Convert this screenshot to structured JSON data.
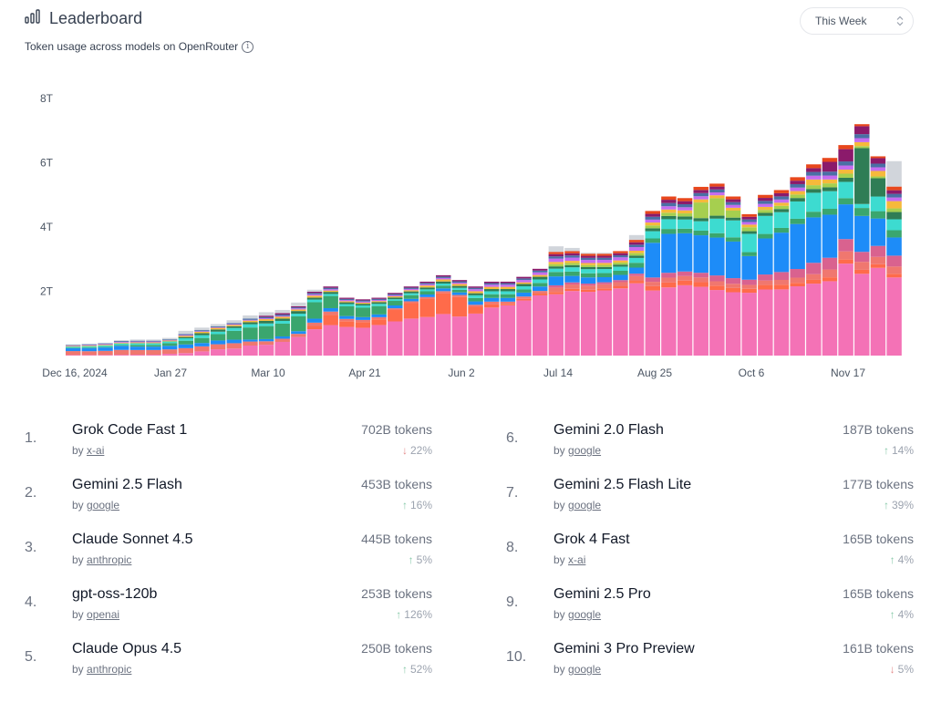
{
  "header": {
    "title": "Leaderboard",
    "subtitle": "Token usage across models on OpenRouter",
    "period": "This Week"
  },
  "colors": {
    "up": "#86c9a8",
    "down": "#e48b8b",
    "text": "#111827",
    "muted": "#6b7280"
  },
  "chart_data": {
    "type": "bar",
    "stacked": true,
    "x_ticks": [
      "Dec 16, 2024",
      "Jan 27",
      "Mar 10",
      "Apr 21",
      "Jun 2",
      "Jul 14",
      "Aug 25",
      "Oct 6",
      "Nov 17"
    ],
    "y_ticks": [
      "2T",
      "4T",
      "6T",
      "8T"
    ],
    "ylim": [
      0,
      8
    ],
    "y_unit": "T tokens",
    "weeks": 52,
    "totals": [
      0.35,
      0.37,
      0.4,
      0.48,
      0.5,
      0.5,
      0.55,
      0.77,
      0.87,
      0.98,
      1.1,
      1.25,
      1.35,
      1.42,
      1.65,
      2.05,
      2.15,
      1.8,
      1.75,
      1.8,
      1.95,
      2.15,
      2.3,
      2.5,
      2.35,
      2.15,
      2.3,
      2.3,
      2.45,
      2.7,
      3.4,
      3.35,
      3.2,
      3.2,
      3.25,
      3.75,
      4.5,
      4.95,
      4.9,
      5.25,
      5.35,
      4.95,
      4.4,
      5.0,
      5.15,
      5.55,
      5.95,
      6.15,
      6.55,
      7.2,
      6.2,
      6.05
    ],
    "stacks": [
      {
        "name": "pink",
        "color": "#f472b6",
        "shares": [
          0.05,
          0.05,
          0.05,
          0.05,
          0.05,
          0.05,
          0.1,
          0.1,
          0.15,
          0.2,
          0.2,
          0.25,
          0.25,
          0.3,
          0.35,
          0.4,
          0.45,
          0.5,
          0.5,
          0.55,
          0.6,
          0.6,
          0.6,
          0.6,
          0.6,
          0.62,
          0.65,
          0.68,
          0.7,
          0.68,
          0.55,
          0.6,
          0.62,
          0.64,
          0.65,
          0.6,
          0.45,
          0.42,
          0.46,
          0.44,
          0.45,
          0.45,
          0.48,
          0.44,
          0.42,
          0.4,
          0.38,
          0.38,
          0.45,
          0.41,
          0.48,
          0.43
        ]
      },
      {
        "name": "orange-red",
        "color": "#ff6b4a",
        "shares": [
          0,
          0,
          0,
          0,
          0,
          0,
          0,
          0,
          0,
          0,
          0,
          0,
          0,
          0,
          0,
          0.05,
          0.15,
          0.1,
          0.1,
          0.1,
          0.2,
          0.25,
          0.28,
          0.3,
          0.3,
          0.1,
          0.05,
          0.02,
          0.02,
          0.02,
          0.02,
          0.02,
          0.02,
          0.02,
          0.02,
          0.02,
          0.03,
          0.03,
          0.03,
          0.03,
          0.03,
          0.03,
          0.03,
          0.03,
          0.03,
          0.02,
          0.02,
          0.02,
          0.02,
          0.02,
          0.02,
          0.02
        ]
      },
      {
        "name": "salmon",
        "color": "#f0776f",
        "shares": [
          0.35,
          0.3,
          0.3,
          0.3,
          0.28,
          0.28,
          0.25,
          0.2,
          0.18,
          0.16,
          0.15,
          0.1,
          0.08,
          0.07,
          0.06,
          0.05,
          0.05,
          0.04,
          0.04,
          0.04,
          0.03,
          0.03,
          0.03,
          0.03,
          0.03,
          0.03,
          0.03,
          0.03,
          0.03,
          0.03,
          0.04,
          0.04,
          0.04,
          0.04,
          0.04,
          0.04,
          0.03,
          0.03,
          0.03,
          0.03,
          0.03,
          0.03,
          0.03,
          0.03,
          0.03,
          0.03,
          0.03,
          0.04,
          0.04,
          0.04,
          0.04,
          0.04
        ]
      },
      {
        "name": "rose",
        "color": "#d9628f",
        "shares": [
          0,
          0,
          0,
          0,
          0,
          0,
          0,
          0,
          0,
          0,
          0,
          0,
          0,
          0,
          0,
          0,
          0,
          0,
          0,
          0,
          0,
          0,
          0,
          0,
          0,
          0,
          0,
          0,
          0,
          0,
          0.02,
          0.02,
          0.02,
          0.02,
          0.02,
          0.02,
          0.03,
          0.03,
          0.03,
          0.03,
          0.04,
          0.04,
          0.04,
          0.04,
          0.05,
          0.05,
          0.06,
          0.06,
          0.06,
          0.05,
          0.06,
          0.06
        ]
      },
      {
        "name": "blue",
        "color": "#1d8cf8",
        "shares": [
          0.25,
          0.25,
          0.25,
          0.25,
          0.2,
          0.2,
          0.2,
          0.15,
          0.12,
          0.12,
          0.1,
          0.05,
          0.05,
          0.05,
          0.05,
          0.06,
          0.05,
          0.05,
          0.05,
          0.05,
          0.05,
          0.04,
          0.04,
          0.04,
          0.04,
          0.05,
          0.05,
          0.05,
          0.05,
          0.05,
          0.08,
          0.06,
          0.06,
          0.05,
          0.05,
          0.05,
          0.24,
          0.24,
          0.25,
          0.24,
          0.26,
          0.26,
          0.18,
          0.24,
          0.25,
          0.26,
          0.24,
          0.22,
          0.17,
          0.18,
          0.15,
          0.1
        ]
      },
      {
        "name": "green",
        "color": "#3aa66e",
        "shares": [
          0.05,
          0.05,
          0.05,
          0.05,
          0.1,
          0.1,
          0.15,
          0.15,
          0.18,
          0.2,
          0.25,
          0.3,
          0.3,
          0.28,
          0.28,
          0.25,
          0.18,
          0.17,
          0.17,
          0.15,
          0.08,
          0.06,
          0.05,
          0.04,
          0.04,
          0.05,
          0.05,
          0.05,
          0.04,
          0.04,
          0.04,
          0.04,
          0.04,
          0.04,
          0.04,
          0.04,
          0.03,
          0.03,
          0.03,
          0.03,
          0.03,
          0.03,
          0.03,
          0.03,
          0.03,
          0.03,
          0.03,
          0.03,
          0.03,
          0.04,
          0.04,
          0.04
        ]
      },
      {
        "name": "turquoise",
        "color": "#3ddbd0",
        "shares": [
          0.1,
          0.1,
          0.1,
          0.1,
          0.1,
          0.1,
          0.1,
          0.1,
          0.1,
          0.08,
          0.08,
          0.08,
          0.06,
          0.06,
          0.05,
          0.04,
          0.03,
          0.04,
          0.04,
          0.04,
          0.03,
          0.03,
          0.03,
          0.03,
          0.03,
          0.04,
          0.04,
          0.04,
          0.04,
          0.04,
          0.03,
          0.04,
          0.04,
          0.04,
          0.04,
          0.04,
          0.05,
          0.06,
          0.06,
          0.06,
          0.1,
          0.12,
          0.14,
          0.12,
          0.1,
          0.1,
          0.1,
          0.09,
          0.08,
          0.02,
          0.08,
          0.06
        ]
      },
      {
        "name": "dark-green",
        "color": "#2f7d55",
        "shares": [
          0,
          0,
          0,
          0,
          0,
          0,
          0,
          0.05,
          0.07,
          0.07,
          0.05,
          0.05,
          0.06,
          0.05,
          0.05,
          0.03,
          0.03,
          0.03,
          0.03,
          0.03,
          0.03,
          0.03,
          0.03,
          0.03,
          0.03,
          0.03,
          0.03,
          0.03,
          0.03,
          0.03,
          0.02,
          0.02,
          0.02,
          0.02,
          0.02,
          0.02,
          0.02,
          0.02,
          0.02,
          0.02,
          0.02,
          0.02,
          0.02,
          0.02,
          0.02,
          0.02,
          0.02,
          0.02,
          0.02,
          0.28,
          0.1,
          0.04
        ]
      },
      {
        "name": "lime",
        "color": "#a6cf4f",
        "shares": [
          0,
          0,
          0,
          0,
          0,
          0,
          0,
          0,
          0,
          0,
          0,
          0,
          0,
          0,
          0,
          0,
          0,
          0,
          0,
          0,
          0,
          0,
          0,
          0,
          0,
          0,
          0,
          0,
          0,
          0,
          0.02,
          0.02,
          0.02,
          0.02,
          0.02,
          0.02,
          0.02,
          0.02,
          0.02,
          0.1,
          0.12,
          0.05,
          0.03,
          0.02,
          0.02,
          0.02,
          0.02,
          0.02,
          0.02,
          0.01,
          0.01,
          0.02
        ]
      },
      {
        "name": "amber",
        "color": "#f6b93b",
        "shares": [
          0.05,
          0.05,
          0.05,
          0.05,
          0.05,
          0.05,
          0.05,
          0.05,
          0.05,
          0.05,
          0.04,
          0.04,
          0.04,
          0.04,
          0.03,
          0.03,
          0.02,
          0.02,
          0.02,
          0.02,
          0.02,
          0.02,
          0.03,
          0.03,
          0.03,
          0.03,
          0.03,
          0.03,
          0.02,
          0.02,
          0.02,
          0.02,
          0.02,
          0.02,
          0.02,
          0.02,
          0.02,
          0.02,
          0.02,
          0.02,
          0.02,
          0.02,
          0.02,
          0.02,
          0.02,
          0.02,
          0.03,
          0.02,
          0.02,
          0.02,
          0.03,
          0.04
        ]
      },
      {
        "name": "violet",
        "color": "#c56cf0",
        "shares": [
          0.05,
          0.05,
          0.05,
          0.05,
          0.05,
          0.05,
          0.03,
          0.03,
          0.02,
          0.02,
          0.02,
          0.02,
          0.02,
          0.02,
          0.02,
          0.02,
          0.02,
          0.02,
          0.02,
          0.02,
          0.02,
          0.02,
          0.02,
          0.02,
          0.02,
          0.03,
          0.03,
          0.03,
          0.03,
          0.03,
          0.03,
          0.03,
          0.03,
          0.03,
          0.03,
          0.03,
          0.02,
          0.02,
          0.02,
          0.02,
          0.02,
          0.02,
          0.02,
          0.02,
          0.02,
          0.02,
          0.02,
          0.02,
          0.02,
          0.02,
          0.02,
          0.02
        ]
      },
      {
        "name": "slate",
        "color": "#4a6fa5",
        "shares": [
          0.05,
          0.05,
          0.05,
          0.05,
          0.05,
          0.05,
          0.04,
          0.04,
          0.04,
          0.03,
          0.03,
          0.03,
          0.03,
          0.03,
          0.02,
          0.02,
          0.02,
          0.02,
          0.02,
          0.02,
          0.02,
          0.02,
          0.02,
          0.02,
          0.02,
          0.02,
          0.02,
          0.02,
          0.02,
          0.02,
          0.02,
          0.02,
          0.02,
          0.02,
          0.02,
          0.02,
          0.02,
          0.02,
          0.02,
          0.02,
          0.02,
          0.02,
          0.02,
          0.02,
          0.02,
          0.02,
          0.02,
          0.02,
          0.02,
          0.02,
          0.02,
          0.02
        ]
      },
      {
        "name": "plum",
        "color": "#8b1a6b",
        "shares": [
          0,
          0,
          0,
          0,
          0,
          0,
          0,
          0,
          0,
          0,
          0,
          0,
          0.03,
          0.03,
          0.02,
          0.02,
          0.02,
          0.02,
          0.02,
          0.02,
          0.02,
          0.02,
          0.02,
          0.02,
          0.02,
          0.02,
          0.02,
          0.02,
          0.02,
          0.02,
          0.02,
          0.02,
          0.02,
          0.02,
          0.02,
          0.02,
          0.02,
          0.02,
          0.02,
          0.02,
          0.02,
          0.02,
          0.02,
          0.02,
          0.02,
          0.02,
          0.02,
          0.05,
          0.06,
          0.04,
          0.03,
          0.02
        ]
      },
      {
        "name": "red-orange",
        "color": "#e8471c",
        "shares": [
          0,
          0,
          0,
          0,
          0,
          0,
          0,
          0,
          0,
          0,
          0,
          0,
          0,
          0,
          0,
          0,
          0,
          0,
          0,
          0,
          0,
          0,
          0,
          0,
          0,
          0,
          0,
          0,
          0,
          0,
          0.02,
          0.02,
          0.02,
          0.02,
          0.02,
          0.02,
          0.02,
          0.02,
          0.02,
          0.02,
          0.02,
          0.02,
          0.02,
          0.02,
          0.02,
          0.02,
          0.02,
          0.02,
          0.02,
          0.01,
          0.01,
          0.02
        ]
      },
      {
        "name": "other",
        "color": "#d1d5db",
        "shares": [
          0.05,
          0.05,
          0.05,
          0.05,
          0.07,
          0.07,
          0.08,
          0.13,
          0.09,
          0.07,
          0.08,
          0.08,
          0.08,
          0.07,
          0.07,
          0.03,
          0.0,
          0.0,
          0.0,
          0.0,
          0.0,
          0.0,
          0.0,
          0.0,
          0.0,
          0.0,
          0.0,
          0.0,
          0.0,
          0.0,
          0.05,
          0.03,
          0.01,
          0.01,
          0.0,
          0.04,
          0.0,
          0.0,
          0.0,
          0.0,
          0.0,
          0.0,
          0.0,
          0.0,
          0.0,
          0.0,
          0.0,
          0.0,
          0.0,
          0.0,
          0.0,
          0.14
        ]
      }
    ]
  },
  "rankings": [
    {
      "rank": "1.",
      "name": "Grok Code Fast 1",
      "by": "by",
      "author": "x-ai",
      "tokens": "702B tokens",
      "change": "22%",
      "direction": "down"
    },
    {
      "rank": "2.",
      "name": "Gemini 2.5 Flash",
      "by": "by",
      "author": "google",
      "tokens": "453B tokens",
      "change": "16%",
      "direction": "up"
    },
    {
      "rank": "3.",
      "name": "Claude Sonnet 4.5",
      "by": "by",
      "author": "anthropic",
      "tokens": "445B tokens",
      "change": "5%",
      "direction": "up"
    },
    {
      "rank": "4.",
      "name": "gpt-oss-120b",
      "by": "by",
      "author": "openai",
      "tokens": "253B tokens",
      "change": "126%",
      "direction": "up"
    },
    {
      "rank": "5.",
      "name": "Claude Opus 4.5",
      "by": "by",
      "author": "anthropic",
      "tokens": "250B tokens",
      "change": "52%",
      "direction": "up"
    },
    {
      "rank": "6.",
      "name": "Gemini 2.0 Flash",
      "by": "by",
      "author": "google",
      "tokens": "187B tokens",
      "change": "14%",
      "direction": "up"
    },
    {
      "rank": "7.",
      "name": "Gemini 2.5 Flash Lite",
      "by": "by",
      "author": "google",
      "tokens": "177B tokens",
      "change": "39%",
      "direction": "up"
    },
    {
      "rank": "8.",
      "name": "Grok 4 Fast",
      "by": "by",
      "author": "x-ai",
      "tokens": "165B tokens",
      "change": "4%",
      "direction": "up"
    },
    {
      "rank": "9.",
      "name": "Gemini 2.5 Pro",
      "by": "by",
      "author": "google",
      "tokens": "165B tokens",
      "change": "4%",
      "direction": "up"
    },
    {
      "rank": "10.",
      "name": "Gemini 3 Pro Preview",
      "by": "by",
      "author": "google",
      "tokens": "161B tokens",
      "change": "5%",
      "direction": "down"
    }
  ]
}
